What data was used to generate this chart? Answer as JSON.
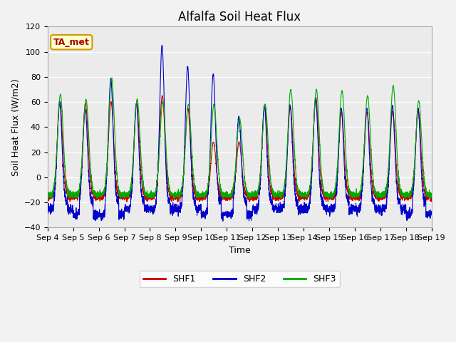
{
  "title": "Alfalfa Soil Heat Flux",
  "ylabel": "Soil Heat Flux (W/m2)",
  "xlabel": "Time",
  "ylim": [
    -40,
    120
  ],
  "xlim": [
    0,
    15
  ],
  "x_tick_labels": [
    "Sep 4",
    "Sep 5",
    "Sep 6",
    "Sep 7",
    "Sep 8",
    "Sep 9",
    "Sep 10",
    "Sep 11",
    "Sep 12",
    "Sep 13",
    "Sep 14",
    "Sep 15",
    "Sep 16",
    "Sep 17",
    "Sep 18",
    "Sep 19"
  ],
  "yticks": [
    -40,
    -20,
    0,
    20,
    40,
    60,
    80,
    100,
    120
  ],
  "colors": {
    "SHF1": "#cc0000",
    "SHF2": "#0000cc",
    "SHF3": "#00aa00"
  },
  "annotation": "TA_met",
  "annotation_color": "#aa0000",
  "annotation_bg": "#ffffcc",
  "annotation_edge": "#cc9900",
  "plot_bg": "#ebebeb",
  "fig_bg": "#f2f2f2",
  "linewidth": 0.8,
  "title_fontsize": 12,
  "axis_label_fontsize": 9,
  "tick_fontsize": 8
}
